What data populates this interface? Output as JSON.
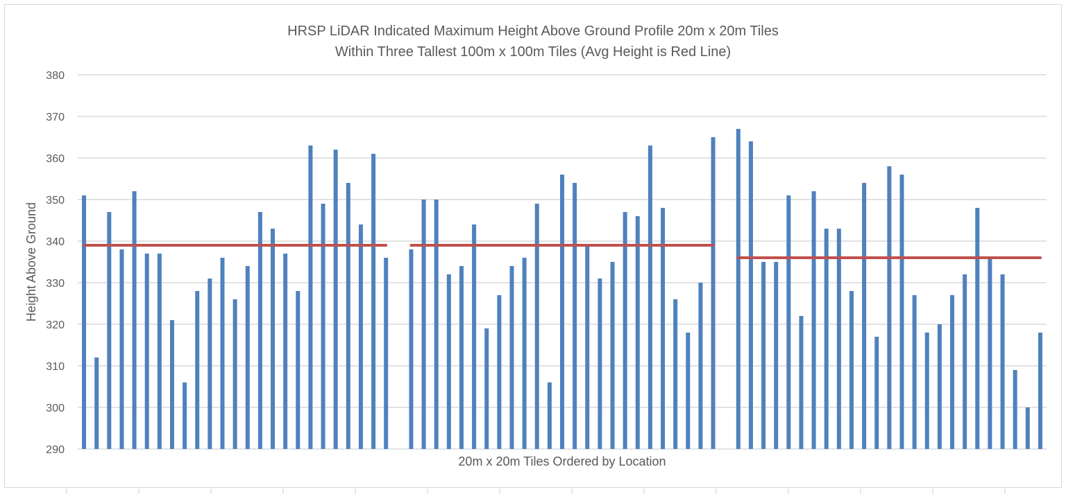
{
  "chart_data": {
    "type": "bar",
    "title": [
      "HRSP LiDAR Indicated Maximum Height Above Ground Profile 20m x 20m Tiles",
      "Within Three Tallest 100m x 100m Tiles (Avg Height is Red Line)"
    ],
    "xlabel": "20m x 20m Tiles Ordered by Location",
    "ylabel": "Height Above Ground",
    "ylim": [
      290,
      380
    ],
    "yticks": [
      "290",
      "300",
      "310",
      "320",
      "330",
      "340",
      "350",
      "360",
      "370",
      "380"
    ],
    "grid": true,
    "groups": [
      {
        "values": [
          351,
          312,
          347,
          338,
          352,
          337,
          337,
          321,
          306,
          328,
          331,
          336,
          326,
          334,
          347,
          343,
          337,
          328,
          363,
          349,
          362,
          354,
          344,
          361,
          336
        ],
        "average": 339
      },
      {
        "values": [
          338,
          350,
          350,
          332,
          334,
          344,
          319,
          327,
          334,
          336,
          349,
          306,
          356,
          354,
          339,
          331,
          335,
          347,
          346,
          363,
          348,
          326,
          318,
          330,
          365
        ],
        "average": 339
      },
      {
        "values": [
          367,
          364,
          335,
          335,
          351,
          322,
          352,
          343,
          343,
          328,
          354,
          317,
          358,
          356,
          327,
          318,
          320,
          327,
          332,
          348,
          336,
          332,
          309,
          300,
          318
        ],
        "average": 336
      }
    ],
    "colors": {
      "bars": "#4f81bd",
      "average_line": "#c0504d",
      "grid": "#d9d9d9",
      "text": "#595959"
    }
  }
}
